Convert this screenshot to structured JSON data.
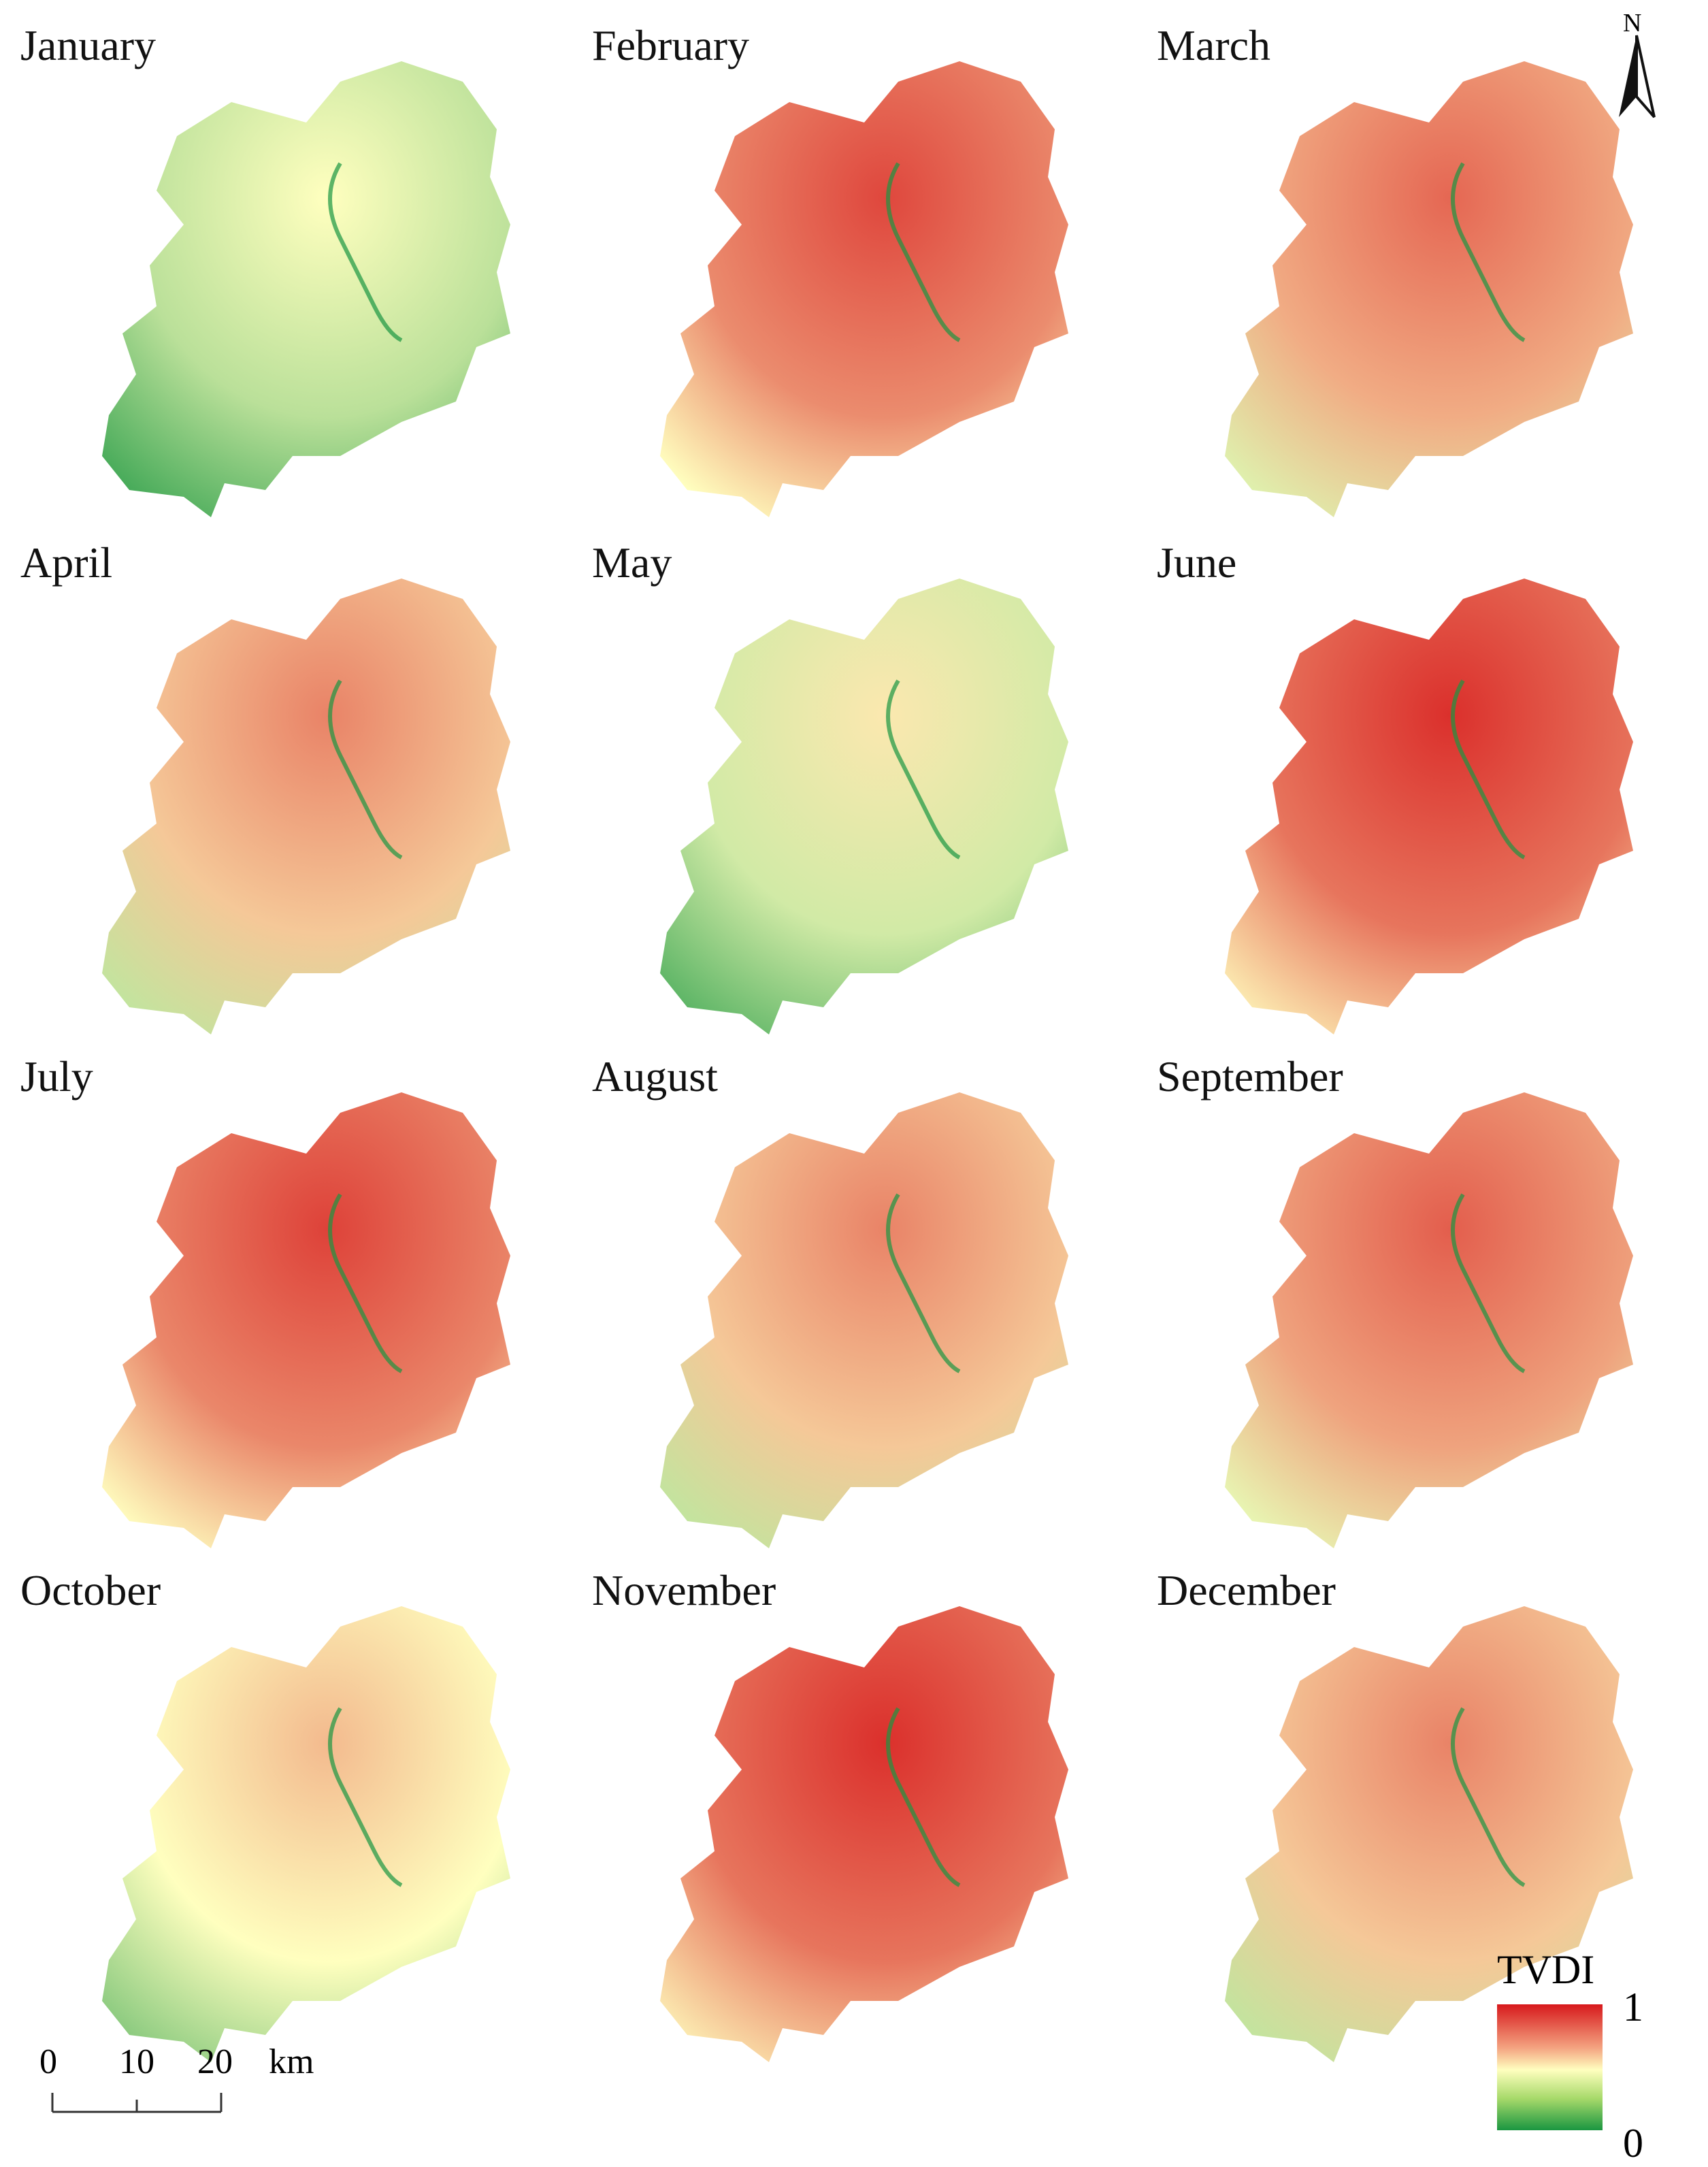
{
  "panels": [
    {
      "month": "January",
      "dryness": 0.45
    },
    {
      "month": "February",
      "dryness": 0.85
    },
    {
      "month": "March",
      "dryness": 0.78
    },
    {
      "month": "April",
      "dryness": 0.72
    },
    {
      "month": "May",
      "dryness": 0.5
    },
    {
      "month": "June",
      "dryness": 0.9
    },
    {
      "month": "July",
      "dryness": 0.86
    },
    {
      "month": "August",
      "dryness": 0.72
    },
    {
      "month": "September",
      "dryness": 0.8
    },
    {
      "month": "October",
      "dryness": 0.6
    },
    {
      "month": "November",
      "dryness": 0.9
    },
    {
      "month": "December",
      "dryness": 0.72
    }
  ],
  "north_arrow": {
    "label": "N"
  },
  "legend": {
    "title": "TVDI",
    "max_label": "1",
    "min_label": "0",
    "colors": {
      "high": "#d7191c",
      "mid": "#ffffbf",
      "low": "#1a9641"
    }
  },
  "scale_bar": {
    "ticks": [
      "0",
      "10",
      "20"
    ],
    "unit": "km"
  }
}
